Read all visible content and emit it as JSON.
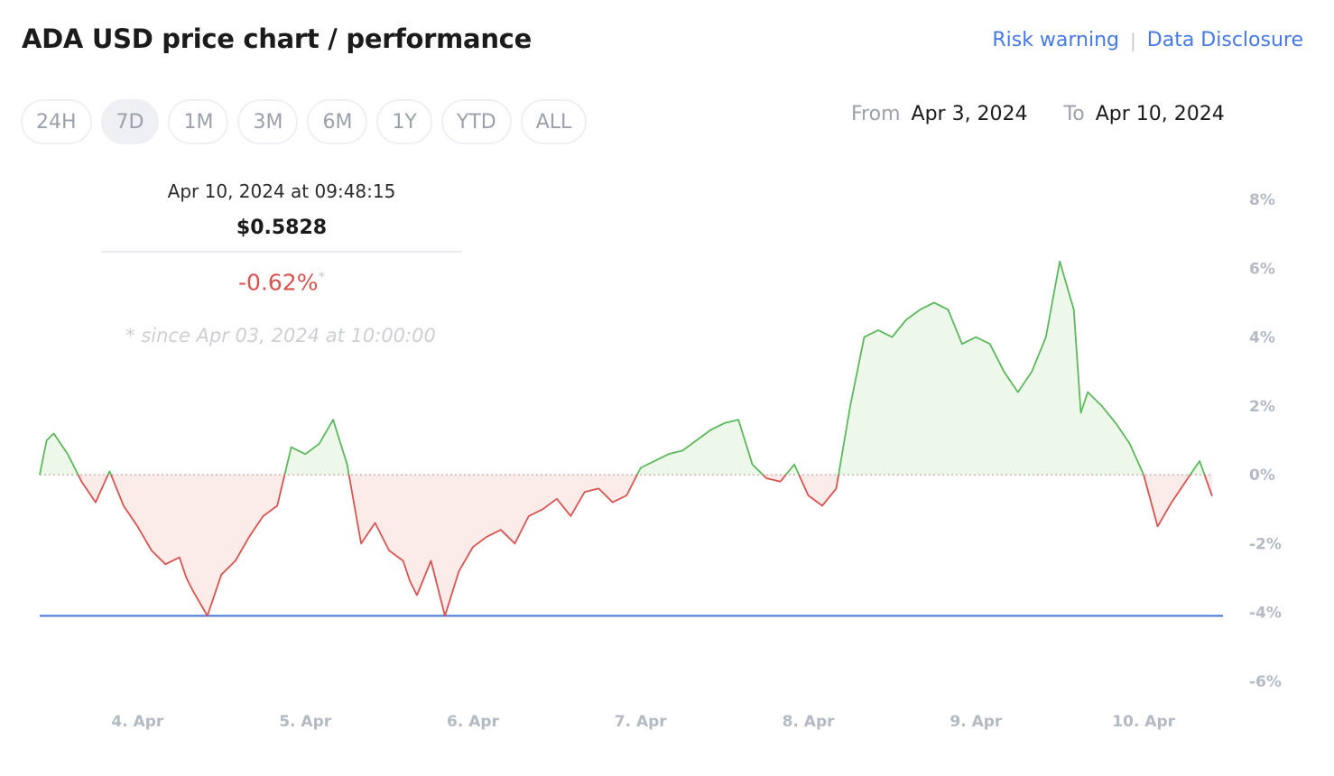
{
  "title": "ADA USD price chart / performance",
  "links": {
    "risk_warning": "Risk warning",
    "separator": "|",
    "data_disclosure": "Data Disclosure"
  },
  "ranges": [
    "24H",
    "7D",
    "1M",
    "3M",
    "6M",
    "1Y",
    "YTD",
    "ALL"
  ],
  "active_range": "7D",
  "date_range": {
    "from_label": "From",
    "from_value": "Apr 3, 2024",
    "to_label": "To",
    "to_value": "Apr 10, 2024"
  },
  "tooltip": {
    "datetime": "Apr 10, 2024 at 09:48:15",
    "price": "$0.5828",
    "change": "-0.62%",
    "change_marker": "*",
    "since_note": "* since Apr 03, 2024 at 10:00:00"
  },
  "colors": {
    "positive": "#5cb85c",
    "negative": "#d9534f",
    "positive_fill": "#eef8ea",
    "negative_fill": "#fbecea",
    "reference_line": "#4a72d9",
    "link": "#4779e6"
  },
  "chart_data": {
    "type": "area",
    "title": "",
    "xlabel": "",
    "ylabel": "",
    "y_unit": "%",
    "ylim": [
      -6,
      8
    ],
    "yticks": [
      8,
      6,
      4,
      2,
      0,
      -2,
      -4,
      -6
    ],
    "ytick_labels": [
      "8%",
      "6%",
      "4%",
      "2%",
      "0%",
      "-2%",
      "-4%",
      "-6%"
    ],
    "xticks": [
      "2024-04-04",
      "2024-04-05",
      "2024-04-06",
      "2024-04-07",
      "2024-04-08",
      "2024-04-09",
      "2024-04-10"
    ],
    "xtick_labels": [
      "4. Apr",
      "5. Apr",
      "6. Apr",
      "7. Apr",
      "8. Apr",
      "9. Apr",
      "10. Apr"
    ],
    "x_range": [
      "2024-04-03T10:00",
      "2024-04-10T09:48"
    ],
    "baseline": 0,
    "reference_line": -4.1,
    "grid": false,
    "x": [
      "2024-04-03T10:00",
      "2024-04-03T11:00",
      "2024-04-03T12:00",
      "2024-04-03T14:00",
      "2024-04-03T16:00",
      "2024-04-03T18:00",
      "2024-04-03T20:00",
      "2024-04-03T22:00",
      "2024-04-04T00:00",
      "2024-04-04T02:00",
      "2024-04-04T04:00",
      "2024-04-04T06:00",
      "2024-04-04T07:00",
      "2024-04-04T08:00",
      "2024-04-04T10:00",
      "2024-04-04T12:00",
      "2024-04-04T14:00",
      "2024-04-04T16:00",
      "2024-04-04T18:00",
      "2024-04-04T20:00",
      "2024-04-04T22:00",
      "2024-04-05T00:00",
      "2024-04-05T02:00",
      "2024-04-05T04:00",
      "2024-04-05T06:00",
      "2024-04-05T08:00",
      "2024-04-05T10:00",
      "2024-04-05T12:00",
      "2024-04-05T14:00",
      "2024-04-05T15:00",
      "2024-04-05T16:00",
      "2024-04-05T18:00",
      "2024-04-05T20:00",
      "2024-04-05T22:00",
      "2024-04-06T00:00",
      "2024-04-06T02:00",
      "2024-04-06T04:00",
      "2024-04-06T06:00",
      "2024-04-06T08:00",
      "2024-04-06T10:00",
      "2024-04-06T12:00",
      "2024-04-06T14:00",
      "2024-04-06T16:00",
      "2024-04-06T18:00",
      "2024-04-06T20:00",
      "2024-04-06T22:00",
      "2024-04-07T00:00",
      "2024-04-07T02:00",
      "2024-04-07T04:00",
      "2024-04-07T06:00",
      "2024-04-07T08:00",
      "2024-04-07T10:00",
      "2024-04-07T12:00",
      "2024-04-07T14:00",
      "2024-04-07T16:00",
      "2024-04-07T18:00",
      "2024-04-07T20:00",
      "2024-04-07T22:00",
      "2024-04-08T00:00",
      "2024-04-08T02:00",
      "2024-04-08T04:00",
      "2024-04-08T06:00",
      "2024-04-08T08:00",
      "2024-04-08T10:00",
      "2024-04-08T12:00",
      "2024-04-08T14:00",
      "2024-04-08T16:00",
      "2024-04-08T18:00",
      "2024-04-08T20:00",
      "2024-04-08T22:00",
      "2024-04-09T00:00",
      "2024-04-09T02:00",
      "2024-04-09T04:00",
      "2024-04-09T06:00",
      "2024-04-09T08:00",
      "2024-04-09T10:00",
      "2024-04-09T12:00",
      "2024-04-09T14:00",
      "2024-04-09T15:00",
      "2024-04-09T16:00",
      "2024-04-09T18:00",
      "2024-04-09T20:00",
      "2024-04-09T22:00",
      "2024-04-10T00:00",
      "2024-04-10T02:00",
      "2024-04-10T04:00",
      "2024-04-10T06:00",
      "2024-04-10T08:00",
      "2024-04-10T09:48"
    ],
    "series": [
      {
        "values": [
          0.0,
          1.0,
          1.2,
          0.6,
          -0.2,
          -0.8,
          0.1,
          -0.9,
          -1.5,
          -2.2,
          -2.6,
          -2.4,
          -3.0,
          -3.4,
          -4.1,
          -2.9,
          -2.5,
          -1.8,
          -1.2,
          -0.9,
          0.8,
          0.6,
          0.9,
          1.6,
          0.3,
          -2.0,
          -1.4,
          -2.2,
          -2.5,
          -3.1,
          -3.5,
          -2.5,
          -4.1,
          -2.8,
          -2.1,
          -1.8,
          -1.6,
          -2.0,
          -1.2,
          -1.0,
          -0.7,
          -1.2,
          -0.5,
          -0.4,
          -0.8,
          -0.6,
          0.2,
          0.4,
          0.6,
          0.7,
          1.0,
          1.3,
          1.5,
          1.6,
          0.3,
          -0.1,
          -0.2,
          0.3,
          -0.6,
          -0.9,
          -0.4,
          2.0,
          4.0,
          4.2,
          4.0,
          4.5,
          4.8,
          5.0,
          4.8,
          3.8,
          4.0,
          3.8,
          3.0,
          2.4,
          3.0,
          4.0,
          6.2,
          4.8,
          1.8,
          2.4,
          2.0,
          1.5,
          0.9,
          0.0,
          -1.5,
          -0.8,
          -0.2,
          0.4,
          -0.62
        ]
      }
    ]
  }
}
